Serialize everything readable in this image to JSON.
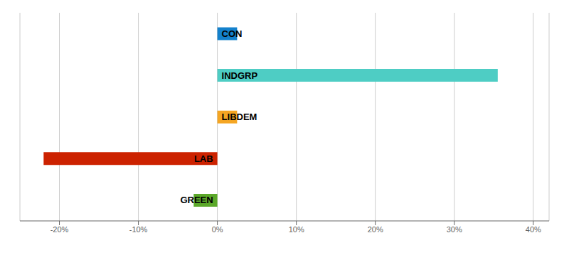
{
  "chart_data": {
    "type": "bar",
    "orientation": "horizontal",
    "categories": [
      "CON",
      "INDGRP",
      "LIBDEM",
      "LAB",
      "GREEN"
    ],
    "values": [
      2.5,
      35.5,
      2.5,
      -22.0,
      -3.0
    ],
    "colors": [
      "#1481CC",
      "#4ECDC4",
      "#F5A623",
      "#CC2200",
      "#5BA829"
    ],
    "xlim": [
      -25,
      42
    ],
    "xticks": [
      {
        "value": -20,
        "label": "-20%"
      },
      {
        "value": -10,
        "label": "-10%"
      },
      {
        "value": 0,
        "label": "0%"
      },
      {
        "value": 10,
        "label": "10%"
      },
      {
        "value": 20,
        "label": "20%"
      },
      {
        "value": 30,
        "label": "30%"
      },
      {
        "value": 40,
        "label": "40%"
      }
    ],
    "grid": true
  }
}
